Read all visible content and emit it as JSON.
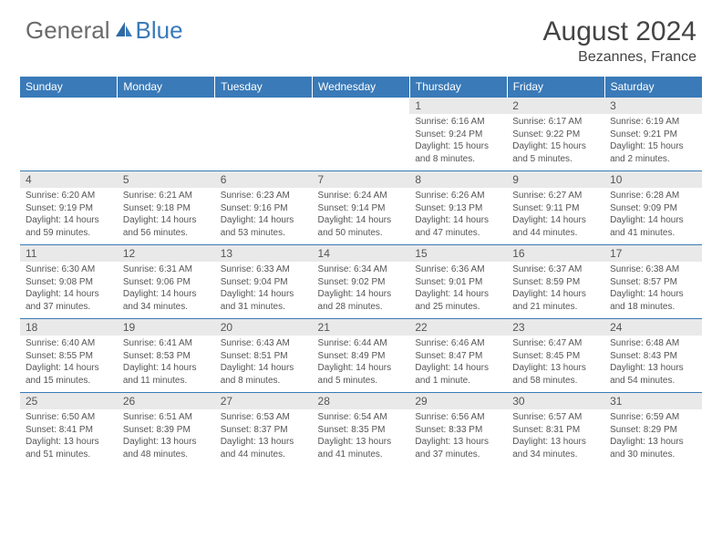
{
  "logo": {
    "text1": "General",
    "text2": "Blue"
  },
  "title": "August 2024",
  "location": "Bezannes, France",
  "colors": {
    "header_bg": "#3a7ab8",
    "header_text": "#ffffff",
    "daynum_bg": "#e9e9e9",
    "border": "#3a7ab8",
    "text": "#555555",
    "logo_gray": "#6b6b6b",
    "logo_blue": "#3a7ab8"
  },
  "weekdays": [
    "Sunday",
    "Monday",
    "Tuesday",
    "Wednesday",
    "Thursday",
    "Friday",
    "Saturday"
  ],
  "weeks": [
    [
      null,
      null,
      null,
      null,
      {
        "d": "1",
        "sr": "6:16 AM",
        "ss": "9:24 PM",
        "dl": "15 hours and 8 minutes."
      },
      {
        "d": "2",
        "sr": "6:17 AM",
        "ss": "9:22 PM",
        "dl": "15 hours and 5 minutes."
      },
      {
        "d": "3",
        "sr": "6:19 AM",
        "ss": "9:21 PM",
        "dl": "15 hours and 2 minutes."
      }
    ],
    [
      {
        "d": "4",
        "sr": "6:20 AM",
        "ss": "9:19 PM",
        "dl": "14 hours and 59 minutes."
      },
      {
        "d": "5",
        "sr": "6:21 AM",
        "ss": "9:18 PM",
        "dl": "14 hours and 56 minutes."
      },
      {
        "d": "6",
        "sr": "6:23 AM",
        "ss": "9:16 PM",
        "dl": "14 hours and 53 minutes."
      },
      {
        "d": "7",
        "sr": "6:24 AM",
        "ss": "9:14 PM",
        "dl": "14 hours and 50 minutes."
      },
      {
        "d": "8",
        "sr": "6:26 AM",
        "ss": "9:13 PM",
        "dl": "14 hours and 47 minutes."
      },
      {
        "d": "9",
        "sr": "6:27 AM",
        "ss": "9:11 PM",
        "dl": "14 hours and 44 minutes."
      },
      {
        "d": "10",
        "sr": "6:28 AM",
        "ss": "9:09 PM",
        "dl": "14 hours and 41 minutes."
      }
    ],
    [
      {
        "d": "11",
        "sr": "6:30 AM",
        "ss": "9:08 PM",
        "dl": "14 hours and 37 minutes."
      },
      {
        "d": "12",
        "sr": "6:31 AM",
        "ss": "9:06 PM",
        "dl": "14 hours and 34 minutes."
      },
      {
        "d": "13",
        "sr": "6:33 AM",
        "ss": "9:04 PM",
        "dl": "14 hours and 31 minutes."
      },
      {
        "d": "14",
        "sr": "6:34 AM",
        "ss": "9:02 PM",
        "dl": "14 hours and 28 minutes."
      },
      {
        "d": "15",
        "sr": "6:36 AM",
        "ss": "9:01 PM",
        "dl": "14 hours and 25 minutes."
      },
      {
        "d": "16",
        "sr": "6:37 AM",
        "ss": "8:59 PM",
        "dl": "14 hours and 21 minutes."
      },
      {
        "d": "17",
        "sr": "6:38 AM",
        "ss": "8:57 PM",
        "dl": "14 hours and 18 minutes."
      }
    ],
    [
      {
        "d": "18",
        "sr": "6:40 AM",
        "ss": "8:55 PM",
        "dl": "14 hours and 15 minutes."
      },
      {
        "d": "19",
        "sr": "6:41 AM",
        "ss": "8:53 PM",
        "dl": "14 hours and 11 minutes."
      },
      {
        "d": "20",
        "sr": "6:43 AM",
        "ss": "8:51 PM",
        "dl": "14 hours and 8 minutes."
      },
      {
        "d": "21",
        "sr": "6:44 AM",
        "ss": "8:49 PM",
        "dl": "14 hours and 5 minutes."
      },
      {
        "d": "22",
        "sr": "6:46 AM",
        "ss": "8:47 PM",
        "dl": "14 hours and 1 minute."
      },
      {
        "d": "23",
        "sr": "6:47 AM",
        "ss": "8:45 PM",
        "dl": "13 hours and 58 minutes."
      },
      {
        "d": "24",
        "sr": "6:48 AM",
        "ss": "8:43 PM",
        "dl": "13 hours and 54 minutes."
      }
    ],
    [
      {
        "d": "25",
        "sr": "6:50 AM",
        "ss": "8:41 PM",
        "dl": "13 hours and 51 minutes."
      },
      {
        "d": "26",
        "sr": "6:51 AM",
        "ss": "8:39 PM",
        "dl": "13 hours and 48 minutes."
      },
      {
        "d": "27",
        "sr": "6:53 AM",
        "ss": "8:37 PM",
        "dl": "13 hours and 44 minutes."
      },
      {
        "d": "28",
        "sr": "6:54 AM",
        "ss": "8:35 PM",
        "dl": "13 hours and 41 minutes."
      },
      {
        "d": "29",
        "sr": "6:56 AM",
        "ss": "8:33 PM",
        "dl": "13 hours and 37 minutes."
      },
      {
        "d": "30",
        "sr": "6:57 AM",
        "ss": "8:31 PM",
        "dl": "13 hours and 34 minutes."
      },
      {
        "d": "31",
        "sr": "6:59 AM",
        "ss": "8:29 PM",
        "dl": "13 hours and 30 minutes."
      }
    ]
  ],
  "labels": {
    "sunrise": "Sunrise:",
    "sunset": "Sunset:",
    "daylight": "Daylight:"
  }
}
